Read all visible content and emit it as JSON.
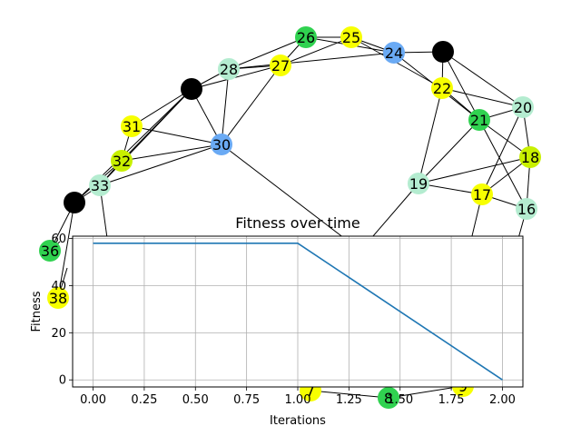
{
  "chart_data": [
    {
      "type": "network",
      "node_colors": {
        "black": "#000000",
        "yellow": "#f7ff00",
        "lime": "#c8f000",
        "green": "#30d250",
        "mint": "#b4ecd0",
        "blue": "#6aaaf4"
      },
      "nodes": [
        {
          "id": "A",
          "label": "",
          "color": "black"
        },
        {
          "id": "B",
          "label": "",
          "color": "black"
        },
        {
          "id": "C",
          "label": "",
          "color": "black"
        },
        {
          "id": "n7",
          "label": "7",
          "color": "yellow"
        },
        {
          "id": "n8",
          "label": "8",
          "color": "green"
        },
        {
          "id": "n9",
          "label": "9",
          "color": "yellow"
        },
        {
          "id": "n16",
          "label": "16",
          "color": "mint"
        },
        {
          "id": "n17",
          "label": "17",
          "color": "yellow"
        },
        {
          "id": "n18",
          "label": "18",
          "color": "lime"
        },
        {
          "id": "n19",
          "label": "19",
          "color": "mint"
        },
        {
          "id": "n20",
          "label": "20",
          "color": "mint"
        },
        {
          "id": "n21",
          "label": "21",
          "color": "green"
        },
        {
          "id": "n22",
          "label": "22",
          "color": "yellow"
        },
        {
          "id": "n24",
          "label": "24",
          "color": "blue"
        },
        {
          "id": "n25",
          "label": "25",
          "color": "yellow"
        },
        {
          "id": "n26",
          "label": "26",
          "color": "green"
        },
        {
          "id": "n27",
          "label": "27",
          "color": "yellow"
        },
        {
          "id": "n28",
          "label": "28",
          "color": "mint"
        },
        {
          "id": "n30",
          "label": "30",
          "color": "blue"
        },
        {
          "id": "n31",
          "label": "31",
          "color": "yellow"
        },
        {
          "id": "n32",
          "label": "32",
          "color": "lime"
        },
        {
          "id": "n33",
          "label": "33",
          "color": "mint"
        },
        {
          "id": "n36",
          "label": "36",
          "color": "green"
        },
        {
          "id": "n38",
          "label": "38",
          "color": "yellow"
        }
      ],
      "edges": [
        [
          "n26",
          "n25"
        ],
        [
          "n26",
          "n24"
        ],
        [
          "n26",
          "n27"
        ],
        [
          "n26",
          "n28"
        ],
        [
          "n25",
          "n24"
        ],
        [
          "n25",
          "n27"
        ],
        [
          "n25",
          "n22"
        ],
        [
          "n24",
          "B"
        ],
        [
          "n24",
          "n21"
        ],
        [
          "n24",
          "n28"
        ],
        [
          "n27",
          "n28"
        ],
        [
          "n27",
          "A"
        ],
        [
          "n27",
          "n30"
        ],
        [
          "n28",
          "A"
        ],
        [
          "n28",
          "n30"
        ],
        [
          "A",
          "n30"
        ],
        [
          "A",
          "n31"
        ],
        [
          "A",
          "n32"
        ],
        [
          "A",
          "n33"
        ],
        [
          "A",
          "C"
        ],
        [
          "n31",
          "n30"
        ],
        [
          "n31",
          "n32"
        ],
        [
          "n32",
          "n30"
        ],
        [
          "n32",
          "n33"
        ],
        [
          "n33",
          "n30"
        ],
        [
          "n33",
          "C"
        ],
        [
          "n32",
          "C"
        ],
        [
          "C",
          "n36"
        ],
        [
          "C",
          "n38"
        ],
        [
          "n30",
          "E_d"
        ],
        [
          "B",
          "n22"
        ],
        [
          "B",
          "n21"
        ],
        [
          "B",
          "n20"
        ],
        [
          "n22",
          "n21"
        ],
        [
          "n22",
          "n20"
        ],
        [
          "n22",
          "n19"
        ],
        [
          "n21",
          "n20"
        ],
        [
          "n21",
          "n19"
        ],
        [
          "n21",
          "n18"
        ],
        [
          "n21",
          "n16"
        ],
        [
          "n20",
          "n17"
        ],
        [
          "n20",
          "n18"
        ],
        [
          "n19",
          "n17"
        ],
        [
          "n19",
          "n18"
        ],
        [
          "n17",
          "n18"
        ],
        [
          "n17",
          "n16"
        ],
        [
          "n18",
          "n16"
        ],
        [
          "n17",
          "E_r"
        ],
        [
          "n16",
          "E_s"
        ],
        [
          "n19",
          "E_m"
        ],
        [
          "n36",
          "E_l"
        ],
        [
          "n38",
          "E_l2"
        ],
        [
          "n33",
          "E_b"
        ],
        [
          "n7",
          "n8"
        ],
        [
          "n8",
          "n9"
        ]
      ]
    },
    {
      "type": "line",
      "title": "Fitness over time",
      "xlabel": "Iterations",
      "ylabel": "Fitness",
      "x": [
        0,
        1,
        2
      ],
      "series": [
        {
          "values": [
            58,
            58,
            0
          ],
          "color": "#1f77b4"
        }
      ],
      "xlim": [
        -0.1,
        2.1
      ],
      "ylim": [
        -3,
        61
      ],
      "xticks": [
        0.0,
        0.25,
        0.5,
        0.75,
        1.0,
        1.25,
        1.5,
        1.75,
        2.0
      ],
      "xtick_labels": [
        "0.00",
        "0.25",
        "0.50",
        "0.75",
        "1.00",
        "1.25",
        "1.50",
        "1.75",
        "2.00"
      ],
      "yticks": [
        0,
        20,
        40,
        60
      ],
      "ytick_labels": [
        "0",
        "20",
        "40",
        "60"
      ],
      "grid": true
    }
  ]
}
